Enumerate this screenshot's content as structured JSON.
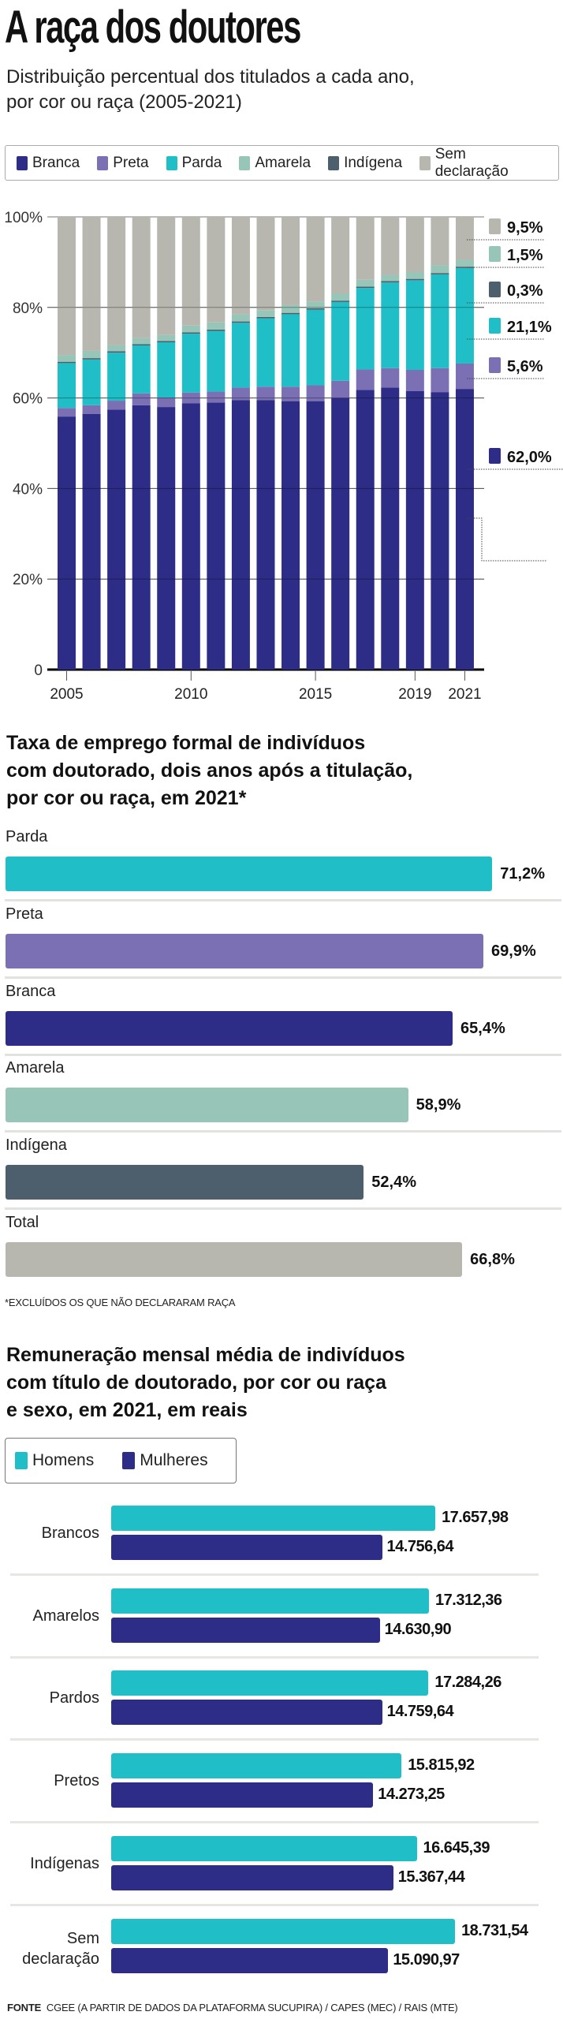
{
  "header": {
    "title": "A raça dos doutores",
    "subtitle_line1": "Distribuição percentual dos titulados a cada ano,",
    "subtitle_line2": "por cor ou raça (2005-2021)"
  },
  "colors": {
    "branca": "#2d2d88",
    "preta": "#7a70b3",
    "parda": "#20bfc8",
    "amarela": "#97c5b8",
    "indigena": "#4d5e6c",
    "sem": "#b7b7b0"
  },
  "chart_data": [
    {
      "type": "bar",
      "stacked": true,
      "title": "Distribuição percentual dos titulados a cada ano, por cor ou raça (2005-2021)",
      "categories": [
        "2005",
        "2006",
        "2007",
        "2008",
        "2009",
        "2010",
        "2011",
        "2012",
        "2013",
        "2014",
        "2015",
        "2016",
        "2017",
        "2018",
        "2019",
        "2020",
        "2021"
      ],
      "x_tick_labels": [
        "2005",
        "2010",
        "2015",
        "2019",
        "2021"
      ],
      "y_tick_labels": [
        "100%",
        "80%",
        "60%",
        "40%",
        "20%",
        "0"
      ],
      "ylim": [
        0,
        100
      ],
      "legend_position": "top",
      "series": [
        {
          "name": "Branca",
          "color_key": "branca",
          "values": [
            55.9,
            56.5,
            57.4,
            58.4,
            58.0,
            58.8,
            59.0,
            59.5,
            59.5,
            59.3,
            59.3,
            60.0,
            61.8,
            62.3,
            61.5,
            61.3,
            62.0
          ]
        },
        {
          "name": "Preta",
          "color_key": "preta",
          "values": [
            1.9,
            1.9,
            2.0,
            2.6,
            2.1,
            2.4,
            2.4,
            2.8,
            3.0,
            3.2,
            3.5,
            3.8,
            4.5,
            4.3,
            4.7,
            5.3,
            5.6
          ]
        },
        {
          "name": "Parda",
          "color_key": "parda",
          "values": [
            9.9,
            10.1,
            10.6,
            10.6,
            12.2,
            13.0,
            13.4,
            14.3,
            15.1,
            16.0,
            16.7,
            17.4,
            18.0,
            18.9,
            19.8,
            20.7,
            21.1
          ]
        },
        {
          "name": "Indígena",
          "color_key": "indigena",
          "values": [
            0.3,
            0.3,
            0.3,
            0.3,
            0.3,
            0.3,
            0.3,
            0.3,
            0.3,
            0.3,
            0.3,
            0.3,
            0.3,
            0.3,
            0.3,
            0.3,
            0.3
          ]
        },
        {
          "name": "Amarela",
          "color_key": "amarela",
          "values": [
            1.5,
            1.6,
            1.4,
            1.3,
            1.3,
            1.5,
            1.6,
            1.6,
            1.5,
            1.7,
            1.5,
            1.6,
            1.5,
            1.4,
            1.5,
            1.7,
            1.5
          ]
        },
        {
          "name": "Sem declaração",
          "color_key": "sem",
          "values": [
            30.5,
            29.6,
            28.3,
            26.8,
            26.1,
            24.0,
            23.3,
            21.5,
            20.6,
            19.5,
            18.7,
            16.9,
            13.9,
            12.8,
            12.2,
            10.7,
            9.5
          ]
        }
      ],
      "legend": [
        {
          "label": "Branca",
          "color_key": "branca"
        },
        {
          "label": "Preta",
          "color_key": "preta"
        },
        {
          "label": "Parda",
          "color_key": "parda"
        },
        {
          "label": "Amarela",
          "color_key": "amarela"
        },
        {
          "label": "Indígena",
          "color_key": "indigena"
        },
        {
          "label": "Sem declaração",
          "color_key": "sem"
        }
      ],
      "end_labels": [
        {
          "label": "9,5%",
          "color_key": "sem"
        },
        {
          "label": "1,5%",
          "color_key": "amarela"
        },
        {
          "label": "0,3%",
          "color_key": "indigena"
        },
        {
          "label": "21,1%",
          "color_key": "parda"
        },
        {
          "label": "5,6%",
          "color_key": "preta"
        },
        {
          "label": "62,0%",
          "color_key": "branca"
        }
      ]
    },
    {
      "type": "bar",
      "orientation": "horizontal",
      "title_line1": "Taxa de emprego formal de indivíduos",
      "title_line2": "com doutorado, dois anos após a titulação,",
      "title_line3": "por cor ou raça, em 2021*",
      "unit": "%",
      "rows": [
        {
          "category": "Parda",
          "value": 71.2,
          "label": "71,2%",
          "color_key": "parda"
        },
        {
          "category": "Preta",
          "value": 69.9,
          "label": "69,9%",
          "color_key": "preta"
        },
        {
          "category": "Branca",
          "value": 65.4,
          "label": "65,4%",
          "color_key": "branca"
        },
        {
          "category": "Amarela",
          "value": 58.9,
          "label": "58,9%",
          "color_key": "amarela"
        },
        {
          "category": "Indígena",
          "value": 52.4,
          "label": "52,4%",
          "color_key": "indigena"
        },
        {
          "category": "Total",
          "value": 66.8,
          "label": "66,8%",
          "color_key": "sem"
        }
      ],
      "footnote": "*EXCLUÍDOS OS QUE NÃO DECLARARAM RAÇA"
    },
    {
      "type": "bar",
      "orientation": "horizontal",
      "grouped": true,
      "title_line1": "Remuneração mensal média de indivíduos",
      "title_line2": "com título de doutorado, por cor ou raça",
      "title_line3": "e sexo, em 2021, em reais",
      "legend": [
        {
          "label": "Homens",
          "color_key": "parda"
        },
        {
          "label": "Mulheres",
          "color_key": "branca"
        }
      ],
      "groups": [
        {
          "category": "Brancos",
          "homens": 17657.98,
          "homens_label": "17.657,98",
          "mulheres": 14756.64,
          "mulheres_label": "14.756,64"
        },
        {
          "category": "Amarelos",
          "homens": 17312.36,
          "homens_label": "17.312,36",
          "mulheres": 14630.9,
          "mulheres_label": "14.630,90"
        },
        {
          "category": "Pardos",
          "homens": 17284.26,
          "homens_label": "17.284,26",
          "mulheres": 14759.64,
          "mulheres_label": "14.759,64"
        },
        {
          "category": "Pretos",
          "homens": 15815.92,
          "homens_label": "15.815,92",
          "mulheres": 14273.25,
          "mulheres_label": "14.273,25"
        },
        {
          "category": "Indígenas",
          "homens": 16645.39,
          "homens_label": "16.645,39",
          "mulheres": 15367.44,
          "mulheres_label": "15.367,44"
        },
        {
          "category": "Sem declaração",
          "category_line1": "Sem",
          "category_line2": "declaração",
          "homens": 18731.54,
          "homens_label": "18.731,54",
          "mulheres": 15090.97,
          "mulheres_label": "15.090,97"
        }
      ]
    }
  ],
  "footer": {
    "label": "FONTE",
    "text": "CGEE (A PARTIR DE DADOS DA PLATAFORMA SUCUPIRA) / CAPES (MEC) / RAIS (MTE)"
  }
}
